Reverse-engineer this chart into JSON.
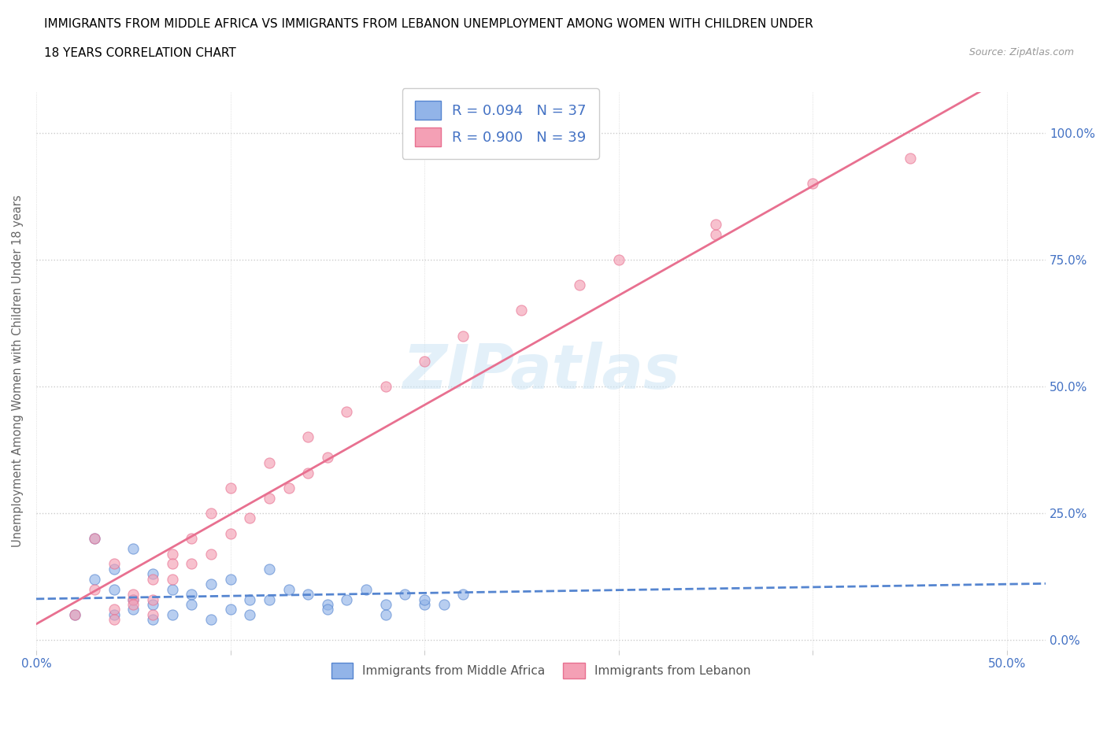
{
  "title_line1": "IMMIGRANTS FROM MIDDLE AFRICA VS IMMIGRANTS FROM LEBANON UNEMPLOYMENT AMONG WOMEN WITH CHILDREN UNDER",
  "title_line2": "18 YEARS CORRELATION CHART",
  "source": "Source: ZipAtlas.com",
  "ylabel": "Unemployment Among Women with Children Under 18 years",
  "watermark": "ZIPatlas",
  "R_africa": 0.094,
  "N_africa": 37,
  "R_lebanon": 0.9,
  "N_lebanon": 39,
  "color_africa": "#92b4e8",
  "color_lebanon": "#f4a0b5",
  "trendline_africa": "#5585d0",
  "trendline_lebanon": "#e87090",
  "africa_x": [
    0.02,
    0.03,
    0.04,
    0.04,
    0.05,
    0.05,
    0.06,
    0.06,
    0.07,
    0.08,
    0.09,
    0.1,
    0.11,
    0.12,
    0.13,
    0.14,
    0.15,
    0.16,
    0.17,
    0.18,
    0.19,
    0.2,
    0.2,
    0.22,
    0.03,
    0.04,
    0.05,
    0.06,
    0.07,
    0.08,
    0.09,
    0.1,
    0.11,
    0.12,
    0.15,
    0.18,
    0.21
  ],
  "africa_y": [
    0.05,
    0.12,
    0.1,
    0.14,
    0.08,
    0.18,
    0.07,
    0.13,
    0.1,
    0.09,
    0.11,
    0.12,
    0.08,
    0.14,
    0.1,
    0.09,
    0.07,
    0.08,
    0.1,
    0.07,
    0.09,
    0.07,
    0.08,
    0.09,
    0.2,
    0.05,
    0.06,
    0.04,
    0.05,
    0.07,
    0.04,
    0.06,
    0.05,
    0.08,
    0.06,
    0.05,
    0.07
  ],
  "lebanon_x": [
    0.02,
    0.03,
    0.04,
    0.05,
    0.06,
    0.07,
    0.08,
    0.09,
    0.1,
    0.12,
    0.14,
    0.16,
    0.18,
    0.2,
    0.22,
    0.25,
    0.28,
    0.3,
    0.35,
    0.4,
    0.45,
    0.03,
    0.04,
    0.05,
    0.06,
    0.07,
    0.08,
    0.09,
    0.1,
    0.11,
    0.12,
    0.13,
    0.14,
    0.15,
    0.35,
    0.04,
    0.05,
    0.06,
    0.07
  ],
  "lebanon_y": [
    0.05,
    0.1,
    0.15,
    0.08,
    0.12,
    0.17,
    0.2,
    0.25,
    0.3,
    0.35,
    0.4,
    0.45,
    0.5,
    0.55,
    0.6,
    0.65,
    0.7,
    0.75,
    0.8,
    0.9,
    0.95,
    0.2,
    0.06,
    0.09,
    0.08,
    0.12,
    0.15,
    0.17,
    0.21,
    0.24,
    0.28,
    0.3,
    0.33,
    0.36,
    0.82,
    0.04,
    0.07,
    0.05,
    0.15
  ],
  "legend_label_africa": "Immigrants from Middle Africa",
  "legend_label_lebanon": "Immigrants from Lebanon",
  "tick_color": "#4472c4",
  "grid_color": "#cccccc",
  "ytick_values": [
    0.0,
    0.25,
    0.5,
    0.75,
    1.0
  ],
  "ytick_labels": [
    "0.0%",
    "25.0%",
    "50.0%",
    "75.0%",
    "100.0%"
  ],
  "xtick_values": [
    0.0,
    0.1,
    0.2,
    0.3,
    0.4,
    0.5
  ],
  "xtick_labels": [
    "0.0%",
    "",
    "",
    "",
    "",
    "50.0%"
  ],
  "xlim": [
    0.0,
    0.52
  ],
  "ylim": [
    -0.02,
    1.08
  ]
}
